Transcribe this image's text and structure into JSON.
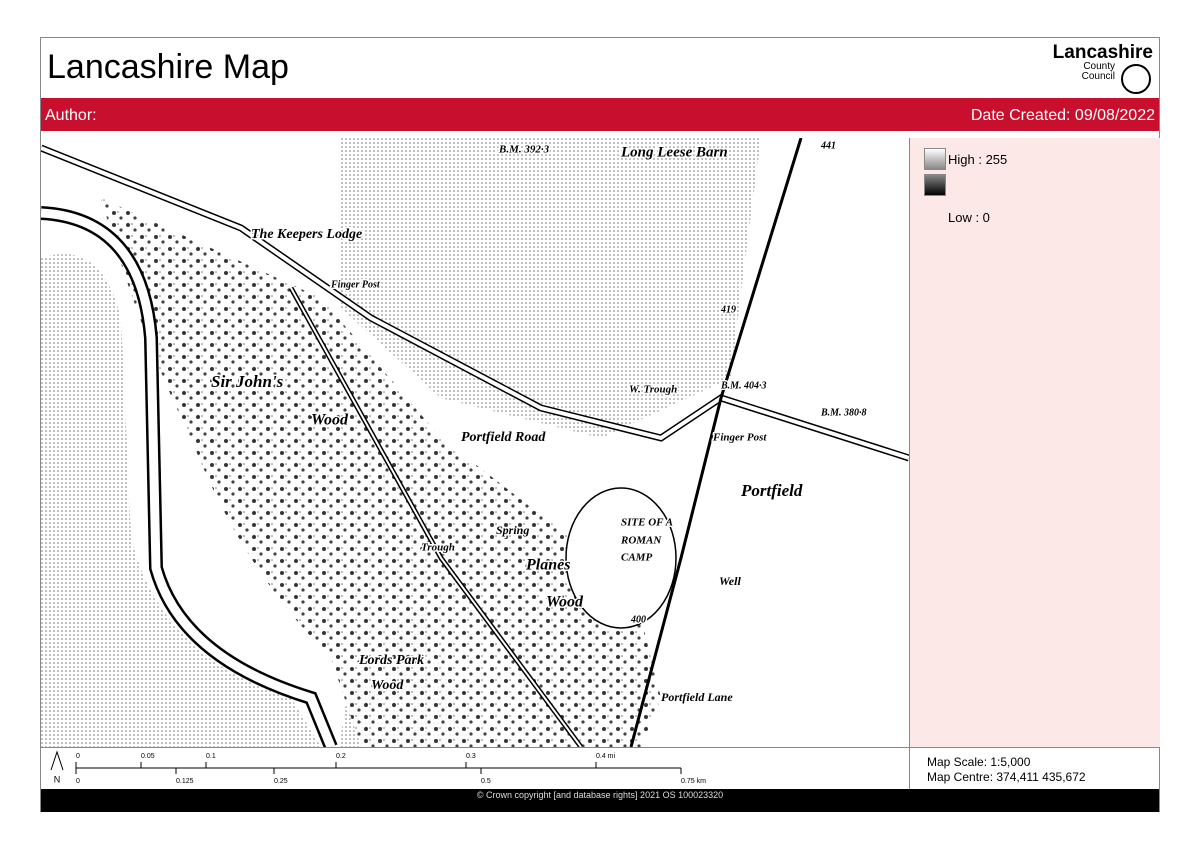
{
  "header": {
    "title": "Lancashire Map",
    "logo": {
      "name": "Lancashire",
      "line2": "County",
      "line3": "Council"
    }
  },
  "info_bar": {
    "author": "Author:",
    "date": "Date Created: 09/08/2022"
  },
  "legend": {
    "high": "High : 255",
    "low": "Low : 0"
  },
  "map": {
    "labels": [
      "B.M. 392·3",
      "Long Leese Barn",
      "The Keepers Lodge",
      "Finger Post",
      "Sir John's",
      "Wood",
      "Portfield Road",
      "W. Trough",
      "B.M. 404·3",
      "B.M. 380·8",
      "Finger Post",
      "Portfield",
      "SITE OF A",
      "ROMAN",
      "CAMP",
      "Spring",
      "Trough",
      "Planes",
      "Wood",
      "Lords Park",
      "Wood",
      "Well",
      "Portfield Lane",
      "441",
      "419",
      "400"
    ]
  },
  "scale_bar": {
    "north": "N",
    "mi_labels": [
      "0",
      "0.05",
      "0.1",
      "0.2",
      "0.3",
      "0.4 mi"
    ],
    "km_labels": [
      "0",
      "0.125",
      "0.25",
      "0.5",
      "0.75 km"
    ]
  },
  "map_info": {
    "scale": "Map Scale: 1:5,000",
    "centre": "Map Centre: 374,411  435,672"
  },
  "copyright": "© Crown copyright [and database rights] 2021 OS 100023320"
}
